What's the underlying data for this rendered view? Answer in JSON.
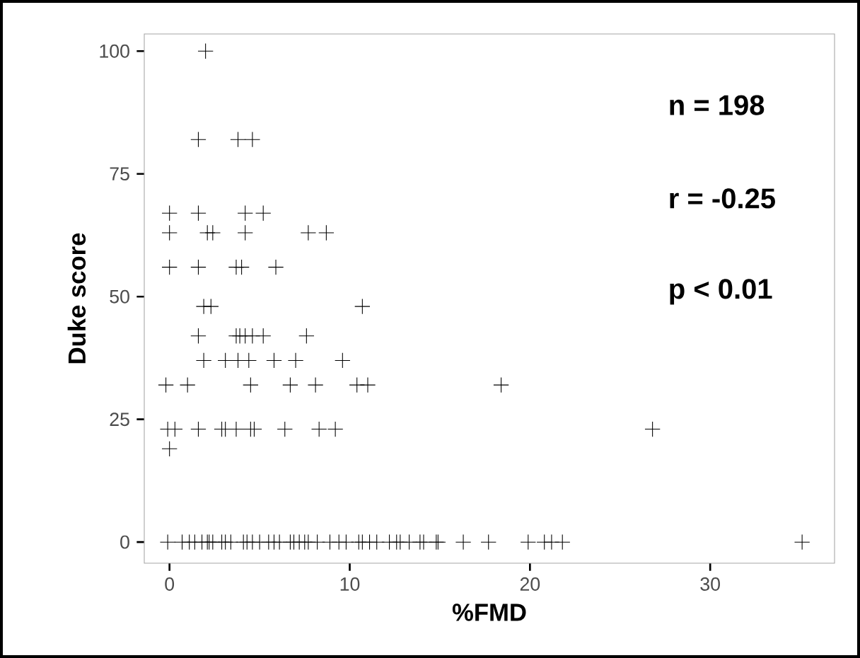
{
  "chart_data": {
    "type": "scatter",
    "xlabel": "%FMD",
    "ylabel": "Duke score",
    "annotations": [
      "n = 198",
      "r = -0.25",
      "p < 0.01"
    ],
    "x": [
      2.0,
      1.6,
      3.8,
      4.6,
      0.0,
      1.6,
      4.2,
      5.2,
      0.0,
      2.1,
      2.4,
      4.2,
      7.7,
      8.7,
      0.0,
      1.6,
      3.7,
      4.0,
      5.9,
      1.9,
      2.3,
      10.7,
      1.6,
      3.7,
      3.9,
      4.2,
      4.6,
      5.2,
      7.6,
      1.9,
      3.1,
      3.8,
      4.4,
      5.8,
      7.0,
      9.6,
      -0.2,
      1.0,
      4.5,
      6.7,
      8.1,
      10.4,
      11.0,
      18.4,
      -0.1,
      0.3,
      1.6,
      2.9,
      3.1,
      3.7,
      4.5,
      4.7,
      6.4,
      8.3,
      9.2,
      26.8,
      0.0,
      -0.1,
      0.7,
      1.1,
      1.4,
      1.8,
      2.1,
      2.2,
      2.4,
      2.9,
      3.1,
      3.4,
      4.1,
      4.3,
      4.6,
      5.0,
      5.5,
      5.8,
      6.1,
      6.7,
      6.9,
      7.2,
      7.5,
      7.7,
      8.2,
      8.9,
      9.4,
      9.8,
      10.5,
      10.7,
      11.1,
      11.5,
      12.2,
      12.6,
      12.8,
      13.3,
      13.9,
      14.1,
      14.8,
      14.9,
      16.3,
      17.7,
      19.9,
      20.8,
      21.2,
      21.8,
      35.1
    ],
    "values": [
      100,
      82,
      82,
      82,
      67,
      67,
      67,
      67,
      63,
      63,
      63,
      63,
      63,
      63,
      56,
      56,
      56,
      56,
      56,
      48,
      48,
      48,
      42,
      42,
      42,
      42,
      42,
      42,
      42,
      37,
      37,
      37,
      37,
      37,
      37,
      37,
      32,
      32,
      32,
      32,
      32,
      32,
      32,
      32,
      23,
      23,
      23,
      23,
      23,
      23,
      23,
      23,
      23,
      23,
      23,
      23,
      19,
      0,
      0,
      0,
      0,
      0,
      0,
      0,
      0,
      0,
      0,
      0,
      0,
      0,
      0,
      0,
      0,
      0,
      0,
      0,
      0,
      0,
      0,
      0,
      0,
      0,
      0,
      0,
      0,
      0,
      0,
      0,
      0,
      0,
      0,
      0,
      0,
      0,
      0,
      0,
      0,
      0,
      0,
      0,
      0,
      0,
      0
    ],
    "color": "#000000",
    "marker": "cross",
    "xlim": [
      -1.4,
      36.9
    ],
    "ylim": [
      -4.3,
      103.5
    ],
    "xticks": [
      0,
      10,
      20,
      30
    ],
    "yticks": [
      0,
      25,
      50,
      75,
      100
    ]
  }
}
